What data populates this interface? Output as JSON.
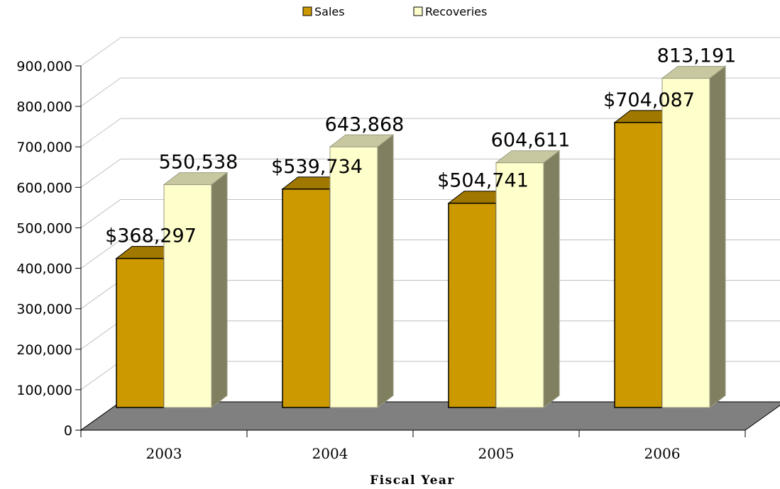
{
  "chart_data": {
    "type": "bar",
    "categories": [
      "2003",
      "2004",
      "2005",
      "2006"
    ],
    "series": [
      {
        "name": "Sales",
        "values": [
          368297,
          539734,
          504741,
          704087
        ],
        "labels": [
          "$368,297",
          "$539,734",
          "$504,741",
          "$704,087"
        ],
        "color": "#cc9900"
      },
      {
        "name": "Recoveries",
        "values": [
          550538,
          643868,
          604611,
          813191
        ],
        "labels": [
          "550,538",
          "643,868",
          "604,611",
          "813,191"
        ],
        "color": "#ffffcc"
      }
    ],
    "title": "",
    "xlabel": "Fiscal Year",
    "ylabel": "",
    "ylim": [
      0,
      900000
    ],
    "yticks": [
      "0",
      "100,000",
      "200,000",
      "300,000",
      "400,000",
      "500,000",
      "600,000",
      "700,000",
      "800,000",
      "900,000"
    ],
    "grid": true,
    "legend_position": "top-center",
    "floor_color": "#808080",
    "style": "3d-clustered-column"
  }
}
